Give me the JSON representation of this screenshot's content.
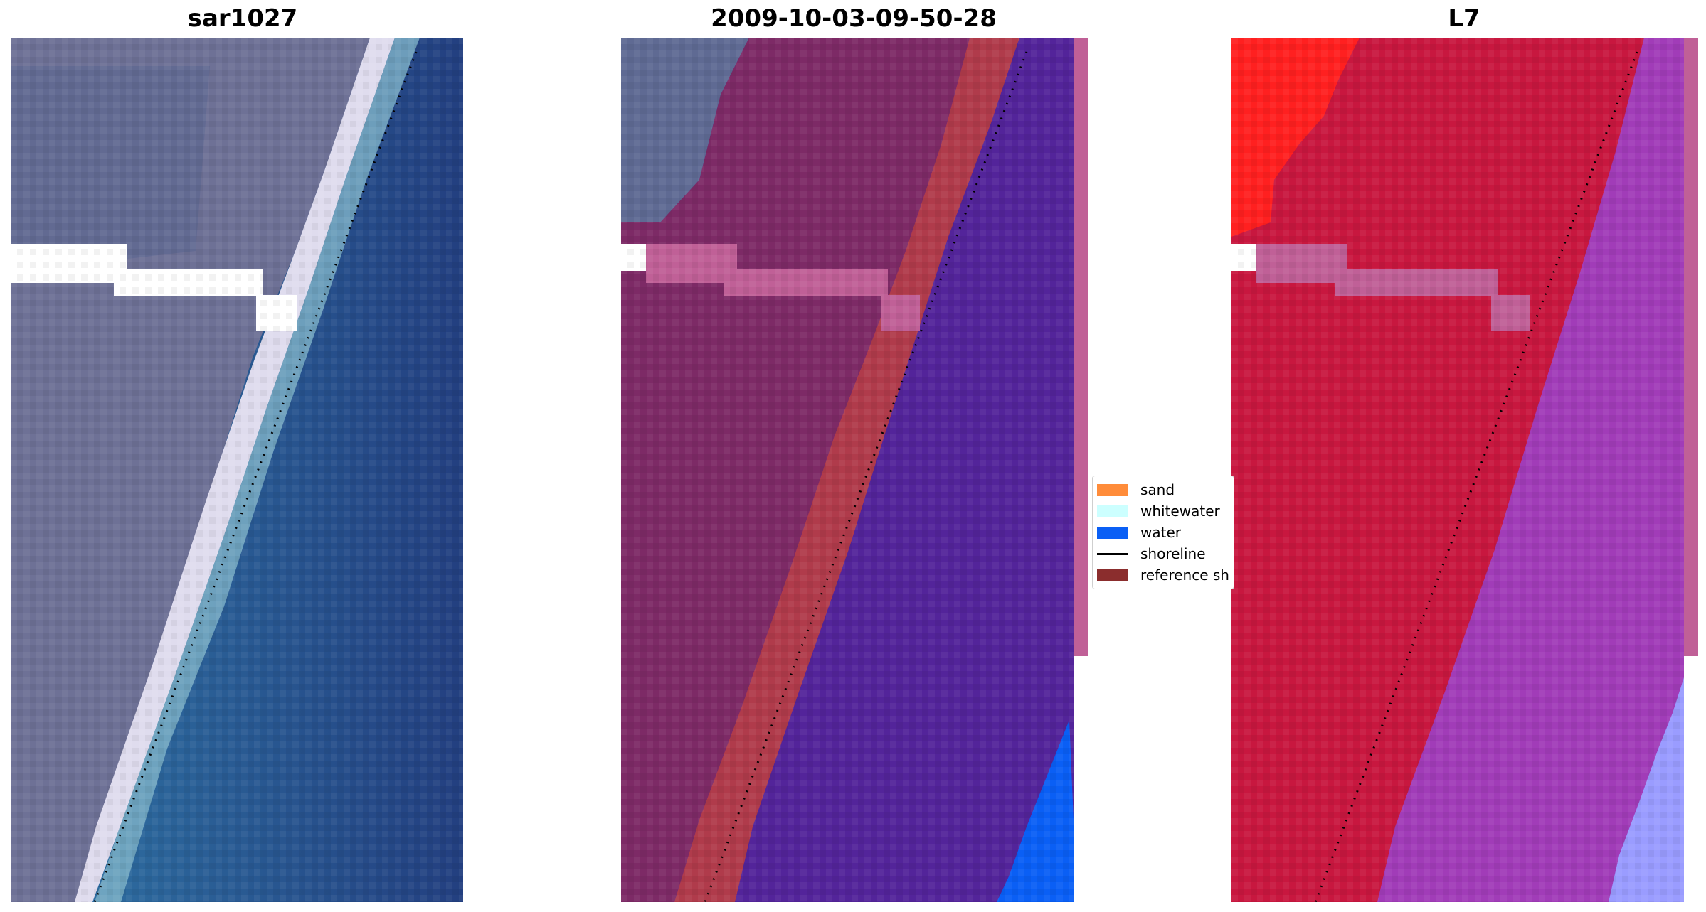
{
  "figure": {
    "titles": [
      "sar1027",
      "2009-10-03-09-50-28",
      "L7"
    ]
  },
  "legend": {
    "items": [
      {
        "label": "sand",
        "kind": "patch",
        "color": "#ff8c3a"
      },
      {
        "label": "whitewater",
        "kind": "patch",
        "color": "#ccffff"
      },
      {
        "label": "water",
        "kind": "patch",
        "color": "#0a5ff5"
      },
      {
        "label": "shoreline",
        "kind": "line",
        "color": "#000000"
      },
      {
        "label": "reference sh",
        "kind": "patch",
        "color": "#8b2d2d"
      }
    ]
  },
  "chart_data": [
    {
      "type": "heatmap",
      "title": "sar1027",
      "content": "RGB satellite image of coastline with detected shoreline",
      "colors": {
        "land": "#6f6f93",
        "beach": "#dcdcf0",
        "water": "#2a5e98",
        "cloud_mask": "#ffffff",
        "shoreline": "#000000"
      }
    },
    {
      "type": "heatmap",
      "title": "2009-10-03-09-50-28",
      "content": "classified image: land, sand, water, cloud mask",
      "colors": {
        "land": "#7d2a66",
        "sand": "#b03b4b",
        "water": "#53249a",
        "water_bright": "#0a5ff5",
        "cloud_mask": "#c06097",
        "shoreline": "#000000"
      }
    },
    {
      "type": "heatmap",
      "title": "L7",
      "content": "MNDWI-style index image with detected shoreline",
      "colors": {
        "land": "#c8173f",
        "land_bright": "#ff2020",
        "water": "#a13cb8",
        "water_bright": "#9a9cff",
        "cloud_mask": "#c06097",
        "shoreline": "#000000"
      }
    }
  ]
}
